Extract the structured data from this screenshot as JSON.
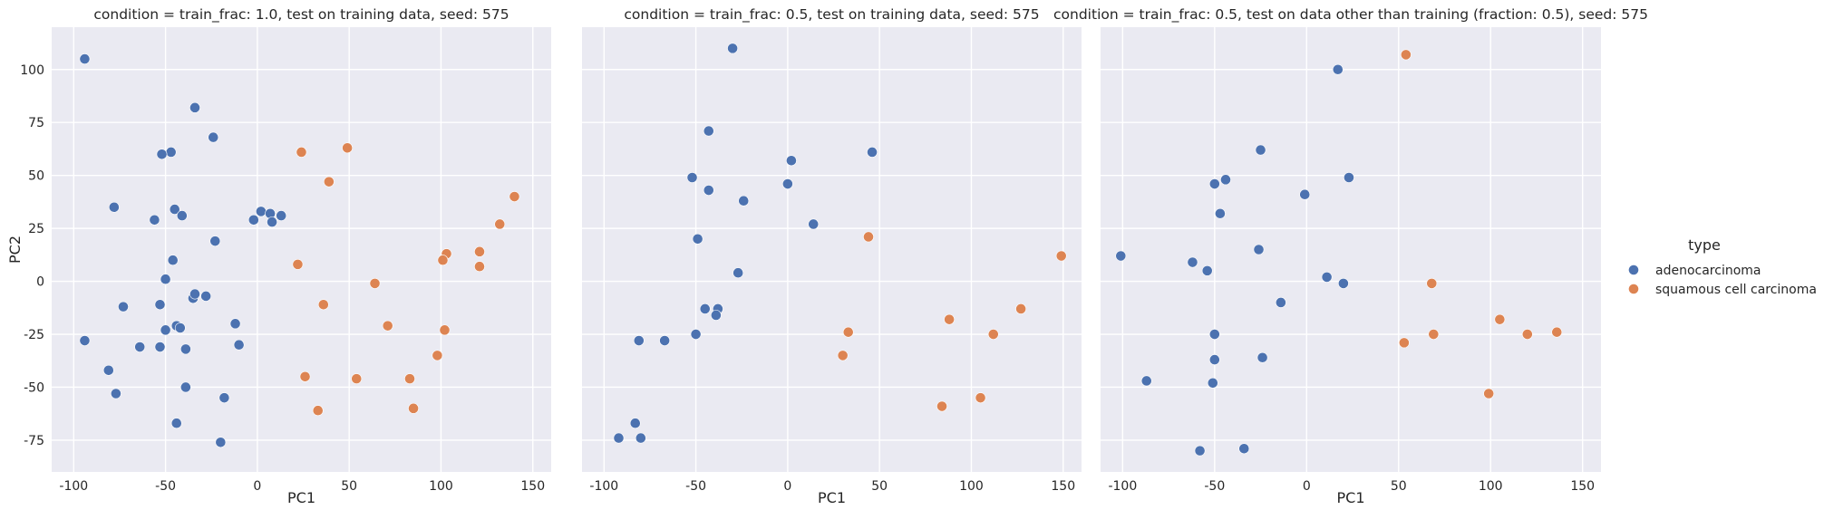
{
  "chart_data": [
    {
      "type": "scatter",
      "title": "condition = train_frac: 1.0, test on training data, seed: 575",
      "xlabel": "PC1",
      "ylabel": "PC2",
      "xlim": [
        -112,
        160
      ],
      "ylim": [
        -90,
        120
      ],
      "xticks": [
        -100,
        -50,
        0,
        50,
        100,
        150
      ],
      "yticks": [
        -75,
        -50,
        -25,
        0,
        25,
        50,
        75,
        100
      ],
      "grid": true,
      "series": [
        {
          "name": "adenocarcinoma",
          "color": "#4c72b0",
          "points": [
            [
              -94,
              105
            ],
            [
              -34,
              82
            ],
            [
              -24,
              68
            ],
            [
              -47,
              61
            ],
            [
              -52,
              60
            ],
            [
              -78,
              35
            ],
            [
              -45,
              34
            ],
            [
              -56,
              29
            ],
            [
              -41,
              31
            ],
            [
              -23,
              19
            ],
            [
              -46,
              10
            ],
            [
              -2,
              29
            ],
            [
              2,
              33
            ],
            [
              7,
              32
            ],
            [
              13,
              31
            ],
            [
              8,
              28
            ],
            [
              -50,
              1
            ],
            [
              -73,
              -12
            ],
            [
              -53,
              -11
            ],
            [
              -35,
              -8
            ],
            [
              -34,
              -6
            ],
            [
              -28,
              -7
            ],
            [
              -94,
              -28
            ],
            [
              -64,
              -31
            ],
            [
              -53,
              -31
            ],
            [
              -44,
              -21
            ],
            [
              -42,
              -22
            ],
            [
              -50,
              -23
            ],
            [
              -39,
              -32
            ],
            [
              -12,
              -20
            ],
            [
              -10,
              -30
            ],
            [
              -81,
              -42
            ],
            [
              -77,
              -53
            ],
            [
              -39,
              -50
            ],
            [
              -18,
              -55
            ],
            [
              -44,
              -67
            ],
            [
              -20,
              -76
            ]
          ]
        },
        {
          "name": "squamous cell carcinoma",
          "color": "#dd8452",
          "points": [
            [
              49,
              63
            ],
            [
              24,
              61
            ],
            [
              39,
              47
            ],
            [
              140,
              40
            ],
            [
              132,
              27
            ],
            [
              121,
              14
            ],
            [
              103,
              13
            ],
            [
              101,
              10
            ],
            [
              121,
              7
            ],
            [
              22,
              8
            ],
            [
              64,
              -1
            ],
            [
              36,
              -11
            ],
            [
              71,
              -21
            ],
            [
              102,
              -23
            ],
            [
              98,
              -35
            ],
            [
              26,
              -45
            ],
            [
              54,
              -46
            ],
            [
              83,
              -46
            ],
            [
              33,
              -61
            ],
            [
              85,
              -60
            ]
          ]
        }
      ]
    },
    {
      "type": "scatter",
      "title": "condition = train_frac: 0.5, test on training data, seed: 575",
      "xlabel": "PC1",
      "ylabel": "",
      "xlim": [
        -112,
        160
      ],
      "ylim": [
        -90,
        120
      ],
      "xticks": [
        -100,
        -50,
        0,
        50,
        100,
        150
      ],
      "yticks": [
        -75,
        -50,
        -25,
        0,
        25,
        50,
        75,
        100
      ],
      "grid": true,
      "series": [
        {
          "name": "adenocarcinoma",
          "color": "#4c72b0",
          "points": [
            [
              -30,
              110
            ],
            [
              -43,
              71
            ],
            [
              46,
              61
            ],
            [
              2,
              57
            ],
            [
              -52,
              49
            ],
            [
              0,
              46
            ],
            [
              -43,
              43
            ],
            [
              -24,
              38
            ],
            [
              14,
              27
            ],
            [
              -49,
              20
            ],
            [
              -27,
              4
            ],
            [
              -45,
              -13
            ],
            [
              -38,
              -13
            ],
            [
              -39,
              -16
            ],
            [
              -50,
              -25
            ],
            [
              -81,
              -28
            ],
            [
              -67,
              -28
            ],
            [
              -83,
              -67
            ],
            [
              -92,
              -74
            ],
            [
              -80,
              -74
            ]
          ]
        },
        {
          "name": "squamous cell carcinoma",
          "color": "#dd8452",
          "points": [
            [
              44,
              21
            ],
            [
              149,
              12
            ],
            [
              127,
              -13
            ],
            [
              88,
              -18
            ],
            [
              33,
              -24
            ],
            [
              112,
              -25
            ],
            [
              30,
              -35
            ],
            [
              105,
              -55
            ],
            [
              84,
              -59
            ]
          ]
        }
      ]
    },
    {
      "type": "scatter",
      "title": "condition = train_frac: 0.5, test on data other than training (fraction: 0.5), seed: 575",
      "xlabel": "PC1",
      "ylabel": "",
      "xlim": [
        -112,
        160
      ],
      "ylim": [
        -90,
        120
      ],
      "xticks": [
        -100,
        -50,
        0,
        50,
        100,
        150
      ],
      "yticks": [
        -75,
        -50,
        -25,
        0,
        25,
        50,
        75,
        100
      ],
      "grid": true,
      "series": [
        {
          "name": "adenocarcinoma",
          "color": "#4c72b0",
          "points": [
            [
              17,
              100
            ],
            [
              -25,
              62
            ],
            [
              23,
              49
            ],
            [
              -44,
              48
            ],
            [
              -50,
              46
            ],
            [
              -1,
              41
            ],
            [
              -47,
              32
            ],
            [
              -101,
              12
            ],
            [
              -26,
              15
            ],
            [
              -62,
              9
            ],
            [
              -54,
              5
            ],
            [
              11,
              2
            ],
            [
              20,
              -1
            ],
            [
              -14,
              -10
            ],
            [
              -50,
              -25
            ],
            [
              -24,
              -36
            ],
            [
              -50,
              -37
            ],
            [
              -87,
              -47
            ],
            [
              -51,
              -48
            ],
            [
              -34,
              -79
            ],
            [
              -58,
              -80
            ]
          ]
        },
        {
          "name": "squamous cell carcinoma",
          "color": "#dd8452",
          "points": [
            [
              54,
              107
            ],
            [
              68,
              -1
            ],
            [
              105,
              -18
            ],
            [
              136,
              -24
            ],
            [
              120,
              -25
            ],
            [
              69,
              -25
            ],
            [
              53,
              -29
            ],
            [
              99,
              -53
            ]
          ]
        }
      ]
    }
  ],
  "legend": {
    "title": "type",
    "items": [
      {
        "label": "adenocarcinoma",
        "color": "#4c72b0"
      },
      {
        "label": "squamous cell carcinoma",
        "color": "#dd8452"
      }
    ]
  }
}
